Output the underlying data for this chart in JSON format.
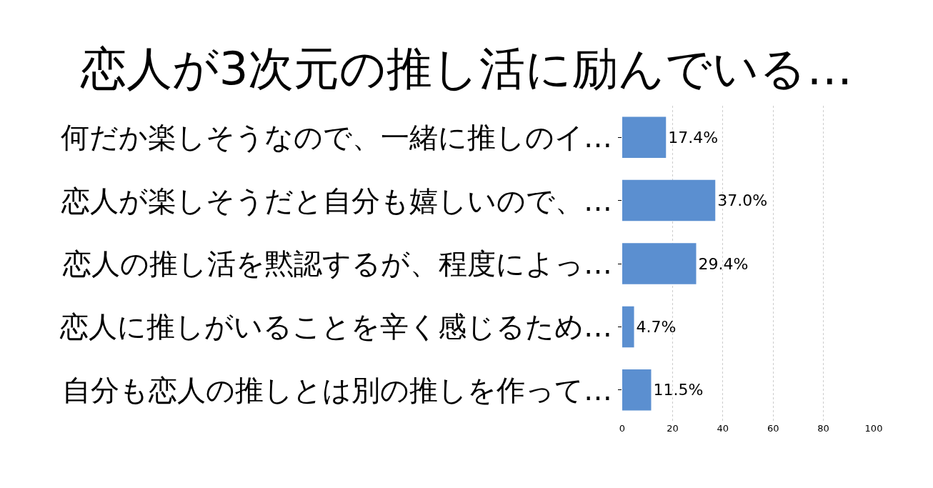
{
  "chart_data": {
    "type": "bar",
    "orientation": "horizontal",
    "title": "恋人が3次元の推し活に励んでいる…",
    "categories": [
      "何だか楽しそうなので、一緒に推しのイ…",
      "恋人が楽しそうだと自分も嬉しいので、…",
      "恋人の推し活を黙認するが、程度によっ…",
      "恋人に推しがいることを辛く感じるため…",
      "自分も恋人の推しとは別の推しを作って…"
    ],
    "values": [
      17.4,
      37.0,
      29.4,
      4.7,
      11.5
    ],
    "value_labels": [
      "17.4%",
      "37.0%",
      "29.4%",
      "4.7%",
      "11.5%"
    ],
    "color": "#5b8fd0",
    "xlim": [
      0,
      100
    ],
    "xticks": [
      0,
      20,
      40,
      60,
      80,
      100
    ],
    "grid": "x",
    "legend": false
  }
}
